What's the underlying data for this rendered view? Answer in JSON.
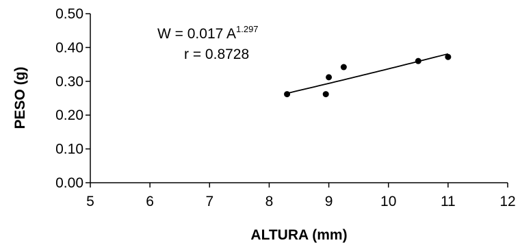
{
  "chart_data": {
    "type": "scatter",
    "title": "",
    "xlabel": "ALTURA (mm)",
    "ylabel": "PESO (g)",
    "xlim": [
      5,
      12
    ],
    "ylim": [
      0,
      0.5
    ],
    "xticks": [
      "5",
      "6",
      "7",
      "8",
      "9",
      "10",
      "11",
      "12"
    ],
    "yticks": [
      "0.00",
      "0.10",
      "0.20",
      "0.30",
      "0.40",
      "0.50"
    ],
    "grid": false,
    "legend": "none",
    "series": [
      {
        "points": [
          {
            "x": 8.3,
            "y": 0.262
          },
          {
            "x": 8.95,
            "y": 0.262
          },
          {
            "x": 9.0,
            "y": 0.312
          },
          {
            "x": 9.25,
            "y": 0.342
          },
          {
            "x": 10.5,
            "y": 0.36
          },
          {
            "x": 11.0,
            "y": 0.372
          }
        ]
      }
    ],
    "trendline": {
      "type": "power",
      "coefficient": 0.017,
      "exponent": 1.297,
      "x_range": [
        8.3,
        11.0
      ]
    },
    "annotations": {
      "equation_main": "W = 0.017 A",
      "equation_exponent": "1.297",
      "correlation": "r = 0.8728"
    },
    "colors": {
      "marker": "#000000",
      "line": "#000000"
    }
  }
}
